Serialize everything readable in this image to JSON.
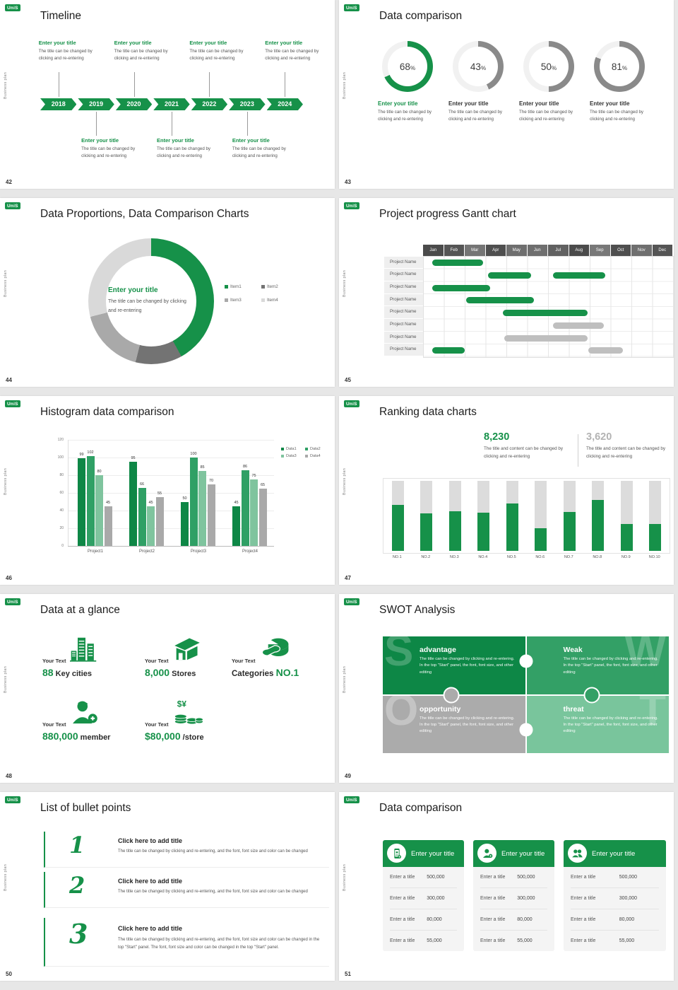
{
  "common": {
    "logo": "UniS",
    "side_text": "Business plan"
  },
  "slides": {
    "timeline": {
      "page": "42",
      "title": "Timeline",
      "years": [
        "2018",
        "2019",
        "2020",
        "2021",
        "2022",
        "2023",
        "2024"
      ],
      "top_year_indices": [
        0,
        2,
        4,
        6
      ],
      "bottom_year_indices": [
        1,
        3,
        5
      ],
      "entry_title": "Enter your title",
      "entry_body": "The title can be changed by clicking and re-entering"
    },
    "donuts": {
      "page": "43",
      "title": "Data comparison",
      "item_title": "Enter your title",
      "item_body": "The title can be changed by clicking and re-entering",
      "chart_data": {
        "type": "pie",
        "items": [
          {
            "pct": 68,
            "arc_color": "#169149",
            "title_color": "#169149"
          },
          {
            "pct": 43,
            "arc_color": "#8a8a8a",
            "title_color": "#333333"
          },
          {
            "pct": 50,
            "arc_color": "#8a8a8a",
            "title_color": "#333333"
          },
          {
            "pct": 81,
            "arc_color": "#8a8a8a",
            "title_color": "#333333"
          }
        ],
        "track_color": "#f1f1f1"
      }
    },
    "proportions": {
      "page": "44",
      "title": "Data Proportions, Data Comparison Charts",
      "center_title": "Enter your title",
      "center_body": "The title can be changed by clicking and re-entering",
      "chart_data": {
        "type": "pie",
        "segments": [
          {
            "label": "Item1",
            "value": 42,
            "color": "#169149"
          },
          {
            "label": "Item2",
            "value": 12,
            "color": "#737373"
          },
          {
            "label": "Item3",
            "value": 17,
            "color": "#a9a9a9"
          },
          {
            "label": "Item4",
            "value": 29,
            "color": "#d9d9d9"
          }
        ]
      }
    },
    "gantt": {
      "page": "45",
      "title": "Project progress Gantt chart",
      "row_label": "Project Name",
      "row_count": 8,
      "months": [
        "Jan",
        "Feb",
        "Mar",
        "Apr",
        "May",
        "Jun",
        "Jul",
        "Aug",
        "Sep",
        "Oct",
        "Nov",
        "Dec"
      ],
      "month_shades": [
        "#4b4b4b",
        "#555555",
        "#757575",
        "#4f4f4f",
        "#6f6f6f",
        "#6f6f6f",
        "#616161",
        "#4b4b4b",
        "#787878",
        "#4f4f4f",
        "#6f6f6f",
        "#555555"
      ],
      "chart_data": {
        "type": "table",
        "bars": [
          {
            "row": 0,
            "start": 0.4,
            "end": 2.85,
            "color": "#169149"
          },
          {
            "row": 1,
            "start": 3.1,
            "end": 5.15,
            "color": "#169149"
          },
          {
            "row": 1,
            "start": 6.2,
            "end": 8.7,
            "color": "#169149"
          },
          {
            "row": 2,
            "start": 0.4,
            "end": 3.2,
            "color": "#169149"
          },
          {
            "row": 3,
            "start": 2.05,
            "end": 5.3,
            "color": "#169149"
          },
          {
            "row": 4,
            "start": 3.8,
            "end": 7.85,
            "color": "#169149"
          },
          {
            "row": 5,
            "start": 6.2,
            "end": 8.65,
            "color": "#bfbfbf"
          },
          {
            "row": 6,
            "start": 3.85,
            "end": 7.85,
            "color": "#bfbfbf"
          },
          {
            "row": 7,
            "start": 0.4,
            "end": 1.95,
            "color": "#169149"
          },
          {
            "row": 7,
            "start": 7.9,
            "end": 9.55,
            "color": "#bfbfbf"
          }
        ]
      }
    },
    "histogram": {
      "page": "46",
      "title": "Histogram data comparison",
      "chart_data": {
        "type": "bar",
        "categories": [
          "Project1",
          "Project2",
          "Project3",
          "Project4"
        ],
        "series": [
          {
            "name": "Data1",
            "color": "#0e8746",
            "values": [
              99,
              95,
              50,
              45
            ]
          },
          {
            "name": "Data2",
            "color": "#2fa065",
            "values": [
              102,
              66,
              100,
              86
            ]
          },
          {
            "name": "Data3",
            "color": "#7fc49e",
            "values": [
              80,
              45,
              85,
              75
            ]
          },
          {
            "name": "Data4",
            "color": "#a9a9a9",
            "values": [
              45,
              55,
              70,
              65
            ]
          }
        ],
        "yticks": [
          0,
          20,
          40,
          60,
          80,
          100,
          120
        ],
        "ylim": [
          0,
          120
        ],
        "legend_position": "top-right",
        "grid": true
      }
    },
    "ranking": {
      "page": "47",
      "title": "Ranking data charts",
      "stats": [
        {
          "value": "8,230",
          "color": "#169149",
          "body": "The title and content can be changed by clicking and re-entering"
        },
        {
          "value": "3,620",
          "color": "#b3b3b3",
          "body": "The title and content can be changed by clicking and re-entering"
        }
      ],
      "chart_data": {
        "type": "bar",
        "categories": [
          "NO.1",
          "NO.2",
          "NO.3",
          "NO.4",
          "NO.5",
          "NO.6",
          "NO.7",
          "NO.8",
          "NO.9",
          "NO.10"
        ],
        "values_pct": [
          66,
          54,
          57,
          55,
          68,
          32,
          56,
          73,
          38,
          38
        ],
        "fill_color": "#169149",
        "track_color": "#dcdcdc"
      }
    },
    "glance": {
      "page": "48",
      "title": "Data at a glance",
      "label": "Your Text",
      "items": [
        {
          "icon": "city-icon",
          "pre": "",
          "accent": "88",
          "post": " Key cities"
        },
        {
          "icon": "store-icon",
          "pre": "",
          "accent": "8,000",
          "post": " Stores"
        },
        {
          "icon": "pie-wheel-icon",
          "pre": "Categories ",
          "accent": "NO.1",
          "post": ""
        },
        {
          "icon": "member-add-icon",
          "pre": "",
          "accent": "880,000",
          "post": " member"
        },
        {
          "icon": "coins-icon",
          "pre": "",
          "accent": "$80,000",
          "post": " /store"
        }
      ]
    },
    "swot": {
      "page": "49",
      "title": "SWOT Analysis",
      "quads": [
        {
          "letter": "S",
          "heading": "advantage",
          "bg": "#0d8746",
          "body": "The title can be changed by clicking and re-entering. In the top \"Start\" panel, the font, font size, and other editing"
        },
        {
          "letter": "W",
          "heading": "Weak",
          "bg": "#33a066",
          "body": "The title can be changed by clicking and re-entering. In the top \"Start\" panel, the font, font size, and other editing"
        },
        {
          "letter": "O",
          "heading": "opportunity",
          "bg": "#ababab",
          "body": "The title can be changed by clicking and re-entering. In the top \"Start\" panel, the font, font size, and other editing"
        },
        {
          "letter": "T",
          "heading": "threat",
          "bg": "#79c59c",
          "body": "The title can be changed by clicking and re-entering. In the top \"Start\" panel, the font, font size, and other editing"
        }
      ]
    },
    "bullets": {
      "page": "50",
      "title": "List of bullet points",
      "items": [
        {
          "num": "1",
          "heading": "Click here to add title",
          "body": "The title can be changed by clicking and re-entering, and the font, font size and color can be changed"
        },
        {
          "num": "2",
          "heading": "Click here to add title",
          "body": "The title can be changed by clicking and re-entering, and the font, font size and color can be changed"
        },
        {
          "num": "3",
          "heading": "Click here to add title",
          "body": "The title can be changed by clicking and re-entering, and the font, font size and color can be changed in the top \"Start\" panel. The font, font size and color can be changed in the top \"Start\" panel."
        }
      ]
    },
    "tables": {
      "page": "51",
      "title": "Data comparison",
      "cards": [
        {
          "icon": "phone-user-icon",
          "heading": "Enter your title",
          "rows": [
            {
              "label": "Enter a title",
              "value": "500,000"
            },
            {
              "label": "Enter a title",
              "value": "300,000"
            },
            {
              "label": "Enter a title",
              "value": "80,000"
            },
            {
              "label": "Enter a title",
              "value": "55,000"
            }
          ]
        },
        {
          "icon": "user-add-icon",
          "heading": "Enter your title",
          "rows": [
            {
              "label": "Enter a title",
              "value": "500,000"
            },
            {
              "label": "Enter a title",
              "value": "300,000"
            },
            {
              "label": "Enter a title",
              "value": "80,000"
            },
            {
              "label": "Enter a title",
              "value": "55,000"
            }
          ]
        },
        {
          "icon": "users-icon",
          "heading": "Enter your title",
          "rows": [
            {
              "label": "Enter a title",
              "value": "500,000"
            },
            {
              "label": "Enter a title",
              "value": "300,000"
            },
            {
              "label": "Enter a title",
              "value": "80,000"
            },
            {
              "label": "Enter a title",
              "value": "55,000"
            }
          ]
        }
      ]
    }
  }
}
